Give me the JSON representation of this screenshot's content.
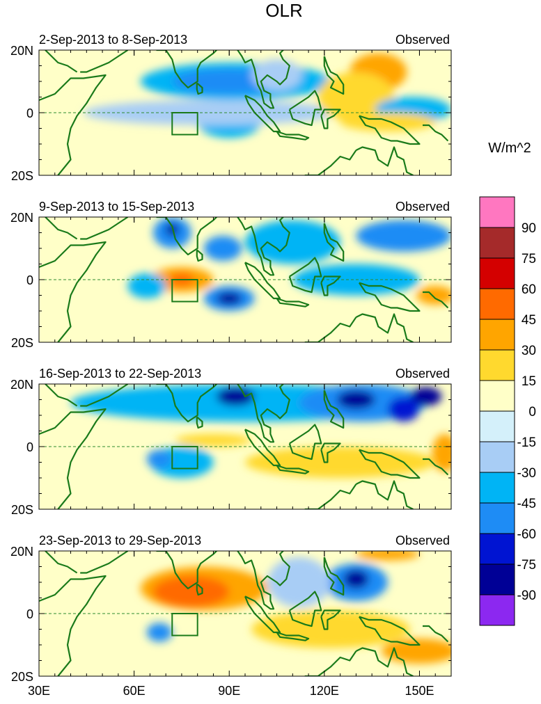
{
  "chart_data": {
    "type": "heatmap",
    "title": "OLR",
    "source_label": "Observed",
    "units": "W/m^2",
    "x_ticks": [
      "30E",
      "60E",
      "90E",
      "120E",
      "150E"
    ],
    "x_tick_values": [
      30,
      60,
      90,
      120,
      150
    ],
    "x_range": [
      30,
      160
    ],
    "y_ticks": [
      "20N",
      "0",
      "20S"
    ],
    "y_tick_values": [
      20,
      0,
      -20
    ],
    "y_range": [
      -20,
      20
    ],
    "colorbar": {
      "labels": [
        "90",
        "75",
        "60",
        "45",
        "30",
        "15",
        "0",
        "-15",
        "-30",
        "-45",
        "-60",
        "-75",
        "-90"
      ],
      "colors": [
        "#ff77c0",
        "#a52a2a",
        "#d40000",
        "#ff6a00",
        "#ffa500",
        "#ffd92e",
        "#ffffc8",
        "#d4f0fa",
        "#a8cdf5",
        "#00b4f5",
        "#1e8cf5",
        "#0014d2",
        "#000096",
        "#8c28f0"
      ]
    },
    "reference_box": {
      "lon": [
        72,
        80
      ],
      "lat": [
        -7,
        0
      ]
    },
    "panels": [
      {
        "label": "2-Sep-2013 to 8-Sep-2013",
        "anomalies": [
          {
            "lon": 92,
            "lat": 10,
            "rx": 30,
            "ry": 6,
            "v": -30
          },
          {
            "lon": 90,
            "lat": 10,
            "rx": 18,
            "ry": 4,
            "v": -45
          },
          {
            "lon": 90,
            "lat": -3,
            "rx": 10,
            "ry": 5,
            "v": -30
          },
          {
            "lon": 84,
            "lat": 0,
            "rx": 40,
            "ry": 4,
            "v": -15
          },
          {
            "lon": 137,
            "lat": 13,
            "rx": 9,
            "ry": 6,
            "v": 30
          },
          {
            "lon": 130,
            "lat": 5,
            "rx": 12,
            "ry": 8,
            "v": 15
          },
          {
            "lon": 148,
            "lat": 1,
            "rx": 12,
            "ry": 4,
            "v": -30
          },
          {
            "lon": 140,
            "lat": -3,
            "rx": 15,
            "ry": 3,
            "v": 15
          },
          {
            "lon": 105,
            "lat": 12,
            "rx": 8,
            "ry": 5,
            "v": -15
          }
        ]
      },
      {
        "label": "9-Sep-2013 to 15-Sep-2013",
        "anomalies": [
          {
            "lon": 75,
            "lat": 0,
            "rx": 10,
            "ry": 4,
            "v": 30
          },
          {
            "lon": 75,
            "lat": 0,
            "rx": 4,
            "ry": 2,
            "v": 45
          },
          {
            "lon": 90,
            "lat": -6,
            "rx": 8,
            "ry": 4,
            "v": -45
          },
          {
            "lon": 90,
            "lat": -6,
            "rx": 4,
            "ry": 2,
            "v": -75
          },
          {
            "lon": 72,
            "lat": 15,
            "rx": 6,
            "ry": 5,
            "v": -45
          },
          {
            "lon": 72,
            "lat": 16,
            "rx": 2,
            "ry": 2,
            "v": -75
          },
          {
            "lon": 88,
            "lat": 10,
            "rx": 6,
            "ry": 4,
            "v": -45
          },
          {
            "lon": 110,
            "lat": 12,
            "rx": 15,
            "ry": 7,
            "v": -30
          },
          {
            "lon": 130,
            "lat": 0,
            "rx": 20,
            "ry": 5,
            "v": -30
          },
          {
            "lon": 145,
            "lat": 14,
            "rx": 15,
            "ry": 5,
            "v": -45
          },
          {
            "lon": 155,
            "lat": -5,
            "rx": 6,
            "ry": 3,
            "v": 30
          },
          {
            "lon": 64,
            "lat": -2,
            "rx": 6,
            "ry": 4,
            "v": -30
          }
        ]
      },
      {
        "label": "16-Sep-2013 to 22-Sep-2013",
        "anomalies": [
          {
            "lon": 95,
            "lat": 14,
            "rx": 55,
            "ry": 6,
            "v": -30
          },
          {
            "lon": 132,
            "lat": 14,
            "rx": 20,
            "ry": 6,
            "v": -45
          },
          {
            "lon": 130,
            "lat": 15,
            "rx": 6,
            "ry": 3,
            "v": -75
          },
          {
            "lon": 92,
            "lat": 16,
            "rx": 6,
            "ry": 3,
            "v": -75
          },
          {
            "lon": 152,
            "lat": 16,
            "rx": 5,
            "ry": 3,
            "v": -75
          },
          {
            "lon": 145,
            "lat": 12,
            "rx": 5,
            "ry": 4,
            "v": -60
          },
          {
            "lon": 75,
            "lat": -5,
            "rx": 10,
            "ry": 5,
            "v": -30
          },
          {
            "lon": 68,
            "lat": -4,
            "rx": 4,
            "ry": 3,
            "v": -45
          },
          {
            "lon": 158,
            "lat": -2,
            "rx": 4,
            "ry": 6,
            "v": 30
          },
          {
            "lon": 85,
            "lat": 2,
            "rx": 12,
            "ry": 2,
            "v": 15
          },
          {
            "lon": 125,
            "lat": -5,
            "rx": 30,
            "ry": 5,
            "v": 15
          }
        ]
      },
      {
        "label": "23-Sep-2013 to 29-Sep-2013",
        "anomalies": [
          {
            "lon": 82,
            "lat": 8,
            "rx": 20,
            "ry": 7,
            "v": 30
          },
          {
            "lon": 78,
            "lat": 7,
            "rx": 12,
            "ry": 5,
            "v": 45
          },
          {
            "lon": 130,
            "lat": 10,
            "rx": 10,
            "ry": 6,
            "v": -45
          },
          {
            "lon": 130,
            "lat": 11,
            "rx": 4,
            "ry": 3,
            "v": -75
          },
          {
            "lon": 112,
            "lat": 10,
            "rx": 10,
            "ry": 8,
            "v": -15
          },
          {
            "lon": 140,
            "lat": 19,
            "rx": 10,
            "ry": 2,
            "v": 30
          },
          {
            "lon": 150,
            "lat": -12,
            "rx": 12,
            "ry": 4,
            "v": 30
          },
          {
            "lon": 68,
            "lat": -6,
            "rx": 4,
            "ry": 3,
            "v": -45
          },
          {
            "lon": 122,
            "lat": -5,
            "rx": 25,
            "ry": 6,
            "v": 15
          }
        ]
      }
    ]
  }
}
